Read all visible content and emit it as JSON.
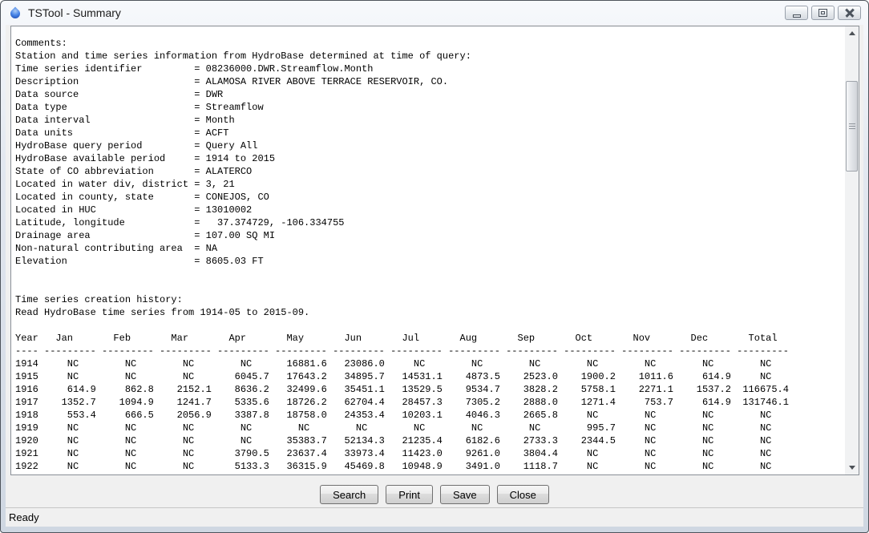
{
  "window": {
    "title": "TSTool - Summary"
  },
  "icons": {
    "app": "water-drop-icon",
    "minimize": "minimize-bar",
    "maximize": "box-in-box",
    "close": "outlined-x",
    "scroll_up": "triangle-up",
    "scroll_down": "triangle-down"
  },
  "colors": {
    "droplet_blue": "#2b5fc7",
    "titlebar_silver": "#dfe6ef",
    "dialog_bg": "#f0f0f0",
    "text": "#000000"
  },
  "summary": {
    "comments_label": "Comments:",
    "intro": "Station and time series information from HydroBase determined at time of query:",
    "properties": [
      {
        "label": "Time series identifier",
        "value": "08236000.DWR.Streamflow.Month"
      },
      {
        "label": "Description",
        "value": "ALAMOSA RIVER ABOVE TERRACE RESERVOIR, CO."
      },
      {
        "label": "Data source",
        "value": "DWR"
      },
      {
        "label": "Data type",
        "value": "Streamflow"
      },
      {
        "label": "Data interval",
        "value": "Month"
      },
      {
        "label": "Data units",
        "value": "ACFT"
      },
      {
        "label": "HydroBase query period",
        "value": "Query All"
      },
      {
        "label": "HydroBase available period",
        "value": "1914 to 2015"
      },
      {
        "label": "State of CO abbreviation",
        "value": "ALATERCO"
      },
      {
        "label": "Located in water div, district",
        "value": "3, 21"
      },
      {
        "label": "Located in county, state",
        "value": "CONEJOS, CO"
      },
      {
        "label": "Located in HUC",
        "value": "13010002"
      },
      {
        "label": "Latitude, longitude",
        "value": "  37.374729, -106.334755"
      },
      {
        "label": "Drainage area",
        "value": "107.00 SQ MI"
      },
      {
        "label": "Non-natural contributing area",
        "value": "NA"
      },
      {
        "label": "Elevation",
        "value": "8605.03 FT"
      }
    ],
    "history_header": "Time series creation history:",
    "history_line": "Read HydroBase time series from 1914-05 to 2015-09."
  },
  "table": {
    "missing_flag": "NC",
    "columns": [
      "Year",
      "Jan",
      "Feb",
      "Mar",
      "Apr",
      "May",
      "Jun",
      "Jul",
      "Aug",
      "Sep",
      "Oct",
      "Nov",
      "Dec",
      "Total"
    ],
    "rows": [
      [
        "1914",
        "NC",
        "NC",
        "NC",
        "NC",
        "16881.6",
        "23086.0",
        "NC",
        "NC",
        "NC",
        "NC",
        "NC",
        "NC",
        "NC"
      ],
      [
        "1915",
        "NC",
        "NC",
        "NC",
        "6045.7",
        "17643.2",
        "34895.7",
        "14531.1",
        "4873.5",
        "2523.0",
        "1900.2",
        "1011.6",
        "614.9",
        "NC"
      ],
      [
        "1916",
        "614.9",
        "862.8",
        "2152.1",
        "8636.2",
        "32499.6",
        "35451.1",
        "13529.5",
        "9534.7",
        "3828.2",
        "5758.1",
        "2271.1",
        "1537.2",
        "116675.4"
      ],
      [
        "1917",
        "1352.7",
        "1094.9",
        "1241.7",
        "5335.6",
        "18726.2",
        "62704.4",
        "28457.3",
        "7305.2",
        "2888.0",
        "1271.4",
        "753.7",
        "614.9",
        "131746.1"
      ],
      [
        "1918",
        "553.4",
        "666.5",
        "2056.9",
        "3387.8",
        "18758.0",
        "24353.4",
        "10203.1",
        "4046.3",
        "2665.8",
        "NC",
        "NC",
        "NC",
        "NC"
      ],
      [
        "1919",
        "NC",
        "NC",
        "NC",
        "NC",
        "NC",
        "NC",
        "NC",
        "NC",
        "NC",
        "995.7",
        "NC",
        "NC",
        "NC"
      ],
      [
        "1920",
        "NC",
        "NC",
        "NC",
        "NC",
        "35383.7",
        "52134.3",
        "21235.4",
        "6182.6",
        "2733.3",
        "2344.5",
        "NC",
        "NC",
        "NC"
      ],
      [
        "1921",
        "NC",
        "NC",
        "NC",
        "3790.5",
        "23637.4",
        "33973.4",
        "11423.0",
        "9261.0",
        "3804.4",
        "NC",
        "NC",
        "NC",
        "NC"
      ],
      [
        "1922",
        "NC",
        "NC",
        "NC",
        "5133.3",
        "36315.9",
        "45469.8",
        "10948.9",
        "3491.0",
        "1118.7",
        "NC",
        "NC",
        "NC",
        "NC"
      ]
    ]
  },
  "buttons": [
    {
      "label": "Search"
    },
    {
      "label": "Print"
    },
    {
      "label": "Save"
    },
    {
      "label": "Close"
    }
  ],
  "status_bar": {
    "text": "Ready"
  }
}
